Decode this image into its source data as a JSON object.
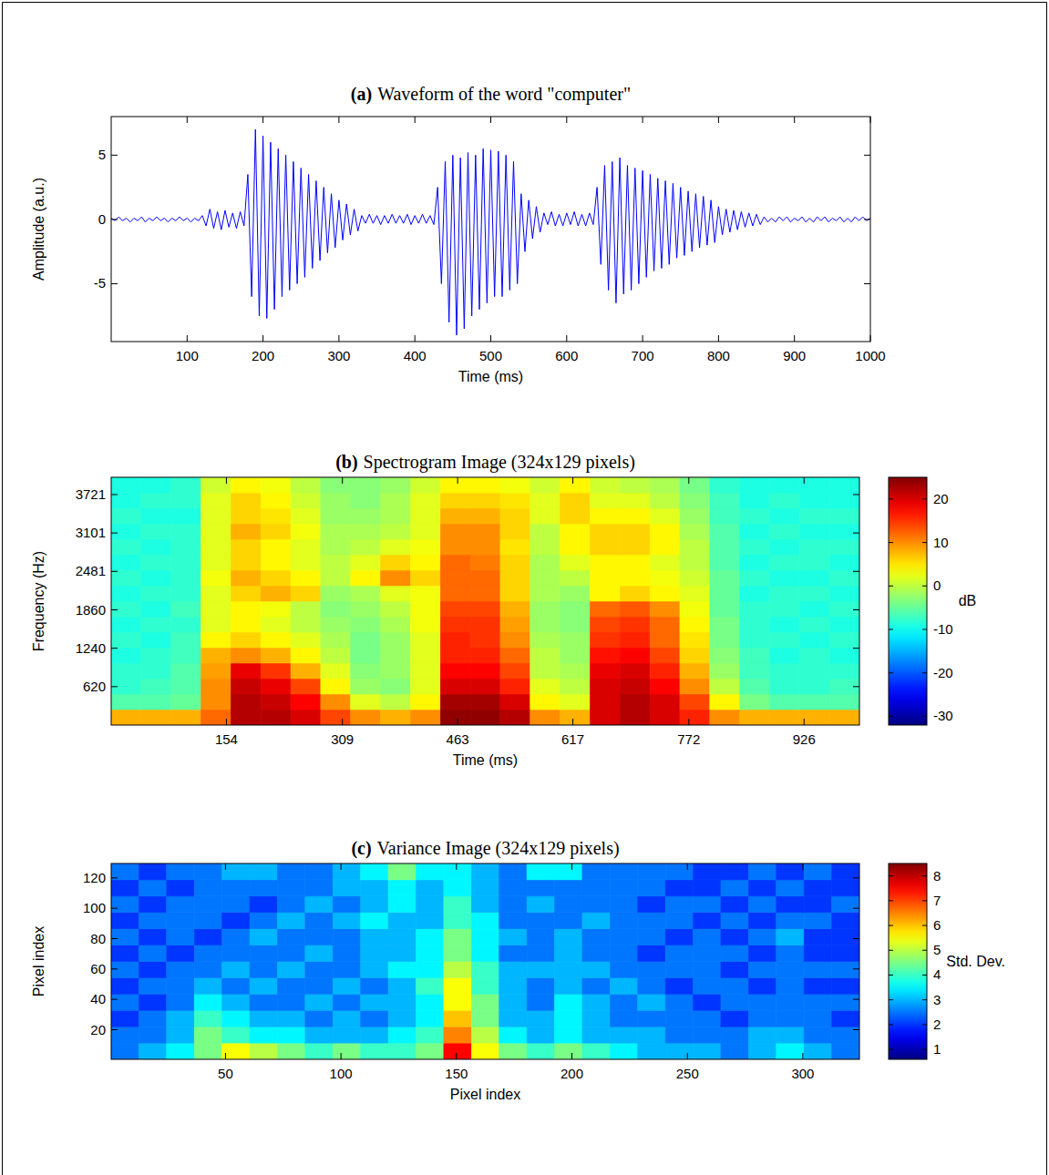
{
  "chart_data": [
    {
      "type": "line",
      "label": "(a)",
      "title": "Waveform of the word \"computer\"",
      "x_label": "Time (ms)",
      "y_label": "Amplitude (a.u.)",
      "x": [
        0,
        5,
        10,
        15,
        20,
        25,
        30,
        35,
        40,
        45,
        50,
        55,
        60,
        65,
        70,
        75,
        80,
        85,
        90,
        95,
        100,
        105,
        110,
        115,
        120,
        125,
        130,
        135,
        140,
        145,
        150,
        155,
        160,
        165,
        170,
        175,
        180,
        185,
        190,
        195,
        200,
        205,
        210,
        215,
        220,
        225,
        230,
        235,
        240,
        245,
        250,
        255,
        260,
        265,
        270,
        275,
        280,
        285,
        290,
        295,
        300,
        305,
        310,
        315,
        320,
        325,
        330,
        335,
        340,
        345,
        350,
        355,
        360,
        365,
        370,
        375,
        380,
        385,
        390,
        395,
        400,
        405,
        410,
        415,
        420,
        425,
        430,
        435,
        440,
        445,
        450,
        455,
        460,
        465,
        470,
        475,
        480,
        485,
        490,
        495,
        500,
        505,
        510,
        515,
        520,
        525,
        530,
        535,
        540,
        545,
        550,
        555,
        560,
        565,
        570,
        575,
        580,
        585,
        590,
        595,
        600,
        605,
        610,
        615,
        620,
        625,
        630,
        635,
        640,
        645,
        650,
        655,
        660,
        665,
        670,
        675,
        680,
        685,
        690,
        695,
        700,
        705,
        710,
        715,
        720,
        725,
        730,
        735,
        740,
        745,
        750,
        755,
        760,
        765,
        770,
        775,
        780,
        785,
        790,
        795,
        800,
        805,
        810,
        815,
        820,
        825,
        830,
        835,
        840,
        845,
        850,
        855,
        860,
        865,
        870,
        875,
        880,
        885,
        890,
        895,
        900,
        905,
        910,
        915,
        920,
        925,
        930,
        935,
        940,
        945,
        950,
        955,
        960,
        965,
        970,
        975,
        980,
        985,
        990,
        995,
        1000
      ],
      "values": [
        0.1,
        -0.1,
        0.2,
        -0.1,
        0.1,
        -0.2,
        0.1,
        -0.1,
        0.2,
        -0.2,
        0.1,
        -0.1,
        0.2,
        -0.1,
        0.1,
        -0.2,
        0.1,
        -0.1,
        0.2,
        -0.1,
        0.1,
        -0.2,
        0.1,
        -0.1,
        0.3,
        -0.5,
        0.8,
        -0.7,
        0.6,
        -0.8,
        0.7,
        -0.6,
        0.5,
        -0.7,
        0.6,
        -0.5,
        3.5,
        -6,
        7,
        -7.5,
        6.5,
        -7.7,
        6,
        -7,
        5.5,
        -6,
        5,
        -5.5,
        4.5,
        -5,
        4,
        -4.5,
        3.5,
        -3.8,
        3,
        -3.2,
        2.5,
        -2.6,
        2,
        -2.2,
        1.5,
        -1.6,
        1.2,
        -1.2,
        0.8,
        -0.9,
        0.3,
        -0.3,
        0.4,
        -0.3,
        0.3,
        -0.4,
        0.3,
        -0.3,
        0.4,
        -0.3,
        0.3,
        -0.3,
        0.4,
        -0.4,
        0.3,
        -0.3,
        0.4,
        -0.3,
        0.3,
        -0.4,
        2.5,
        -5,
        4.5,
        -8,
        5,
        -9,
        4.8,
        -8.5,
        5.2,
        -7.5,
        5,
        -7,
        5.5,
        -6.5,
        5.4,
        -6,
        5.3,
        -6,
        5,
        -5.5,
        4.5,
        -5,
        2,
        -2.5,
        1.5,
        -1.5,
        1,
        -1,
        0.5,
        -0.4,
        0.6,
        -0.5,
        0.4,
        -0.5,
        0.5,
        -0.4,
        0.6,
        -0.5,
        0.4,
        -0.5,
        0.5,
        -0.4,
        2.5,
        -3.5,
        4.2,
        -5.5,
        4.5,
        -6.5,
        4.8,
        -5.8,
        4.2,
        -5.5,
        4,
        -5,
        3.8,
        -4.5,
        3.5,
        -4,
        3.2,
        -3.8,
        3,
        -3.5,
        2.8,
        -3,
        2.5,
        -2.8,
        2.2,
        -2.5,
        2,
        -2.2,
        1.8,
        -2,
        1.5,
        -1.8,
        1,
        -1.2,
        0.8,
        -1,
        0.7,
        -0.8,
        0.6,
        -0.6,
        0.5,
        -0.5,
        0.4,
        -0.4,
        0.2,
        -0.2,
        0.1,
        -0.2,
        0.2,
        -0.1,
        0.2,
        -0.2,
        0.1,
        -0.1,
        0.2,
        -0.2,
        0.1,
        -0.2,
        0.2,
        -0.1,
        0.2,
        -0.2,
        0.1,
        -0.1,
        0.2,
        -0.2,
        0.1,
        -0.2,
        0.2,
        -0.1,
        0.2,
        -0.1,
        0.1
      ],
      "color": "#0000ff",
      "xlim": [
        0,
        1000
      ],
      "ylim": [
        -9.5,
        8
      ],
      "xticks": [
        100,
        200,
        300,
        400,
        500,
        600,
        700,
        800,
        900,
        1000
      ],
      "yticks": [
        -5,
        0,
        5
      ]
    },
    {
      "type": "heatmap",
      "label": "(b)",
      "title": "Spectrogram Image (324x129 pixels)",
      "x_label": "Time (ms)",
      "y_label": "Frequency (Hz)",
      "x_edges": [
        0,
        40,
        80,
        120,
        160,
        200,
        240,
        280,
        320,
        360,
        400,
        440,
        480,
        520,
        560,
        600,
        640,
        680,
        720,
        760,
        800,
        840,
        880,
        920,
        960,
        1000
      ],
      "y_edges": [
        0,
        250,
        500,
        750,
        1000,
        1250,
        1500,
        1750,
        2000,
        2250,
        2500,
        2750,
        3000,
        3250,
        3500,
        3750,
        4000
      ],
      "cells": [
        [
          8,
          8,
          8,
          12,
          22,
          22,
          20,
          14,
          10,
          8,
          10,
          24,
          24,
          22,
          10,
          8,
          20,
          22,
          20,
          16,
          10,
          8,
          8,
          8,
          8
        ],
        [
          -6,
          -6,
          -5,
          10,
          22,
          21,
          18,
          10,
          2,
          0,
          4,
          23,
          23,
          20,
          4,
          2,
          20,
          22,
          20,
          14,
          4,
          -4,
          -6,
          -6,
          -6
        ],
        [
          -8,
          -7,
          -6,
          10,
          21,
          19,
          14,
          4,
          -2,
          -3,
          2,
          20,
          20,
          16,
          2,
          0,
          20,
          21,
          18,
          10,
          0,
          -6,
          -8,
          -8,
          -7
        ],
        [
          -8,
          -8,
          -6,
          9,
          19,
          15,
          8,
          2,
          -3,
          -2,
          2,
          18,
          18,
          14,
          0,
          -1,
          19,
          20,
          16,
          8,
          -2,
          -7,
          -8,
          -8,
          -8
        ],
        [
          -9,
          -8,
          -7,
          8,
          10,
          8,
          4,
          0,
          -4,
          -2,
          2,
          16,
          16,
          12,
          0,
          -2,
          17,
          18,
          14,
          6,
          -3,
          -7,
          -9,
          -8,
          -9
        ],
        [
          -8,
          -9,
          -7,
          4,
          6,
          4,
          2,
          -1,
          -4,
          -2,
          2,
          16,
          15,
          10,
          -1,
          -2,
          15,
          16,
          12,
          5,
          -4,
          -8,
          -8,
          -9,
          -8
        ],
        [
          -9,
          -8,
          -8,
          2,
          4,
          2,
          0,
          -2,
          -3,
          -1,
          3,
          15,
          15,
          9,
          -2,
          -3,
          14,
          15,
          12,
          4,
          -4,
          -8,
          -9,
          -8,
          -9
        ],
        [
          -8,
          -9,
          -7,
          2,
          4,
          3,
          0,
          -3,
          -2,
          0,
          3,
          14,
          14,
          8,
          -2,
          -3,
          12,
          13,
          10,
          3,
          -5,
          -8,
          -8,
          -9,
          -8
        ],
        [
          -9,
          -8,
          -8,
          2,
          6,
          8,
          6,
          -2,
          -1,
          2,
          3,
          12,
          12,
          6,
          -1,
          -2,
          4,
          6,
          4,
          2,
          -5,
          -9,
          -8,
          -8,
          -9
        ],
        [
          -8,
          -9,
          -8,
          3,
          8,
          6,
          4,
          0,
          4,
          10,
          6,
          12,
          12,
          6,
          -1,
          0,
          4,
          4,
          3,
          1,
          -5,
          -8,
          -9,
          -9,
          -8
        ],
        [
          -9,
          -8,
          -8,
          2,
          6,
          4,
          2,
          0,
          2,
          6,
          4,
          12,
          11,
          6,
          -1,
          2,
          4,
          4,
          2,
          0,
          -6,
          -9,
          -8,
          -8,
          -9
        ],
        [
          -8,
          -9,
          -8,
          2,
          6,
          4,
          2,
          -1,
          0,
          2,
          3,
          10,
          10,
          5,
          0,
          4,
          6,
          6,
          4,
          0,
          -6,
          -8,
          -9,
          -8,
          -8
        ],
        [
          -9,
          -8,
          -8,
          2,
          8,
          6,
          3,
          -1,
          -1,
          0,
          2,
          10,
          10,
          6,
          0,
          4,
          6,
          6,
          4,
          -1,
          -6,
          -9,
          -8,
          -9,
          -9
        ],
        [
          -8,
          -9,
          -9,
          2,
          6,
          5,
          2,
          -2,
          -2,
          -1,
          2,
          8,
          8,
          6,
          2,
          6,
          4,
          4,
          2,
          -2,
          -7,
          -8,
          -9,
          -8,
          -8
        ],
        [
          -9,
          -8,
          -8,
          2,
          6,
          4,
          1,
          -2,
          -3,
          -1,
          2,
          6,
          6,
          5,
          2,
          6,
          2,
          2,
          0,
          -3,
          -7,
          -9,
          -8,
          -9,
          -9
        ],
        [
          -9,
          -9,
          -8,
          1,
          4,
          3,
          0,
          -3,
          -3,
          -2,
          1,
          4,
          4,
          3,
          1,
          4,
          1,
          0,
          -1,
          -4,
          -8,
          -9,
          -9,
          -9,
          -9
        ]
      ],
      "xlim": [
        0,
        1000
      ],
      "ylim": [
        0,
        4000
      ],
      "xticks": [
        154,
        309,
        463,
        617,
        772,
        926
      ],
      "yticks": [
        620,
        1240,
        1860,
        2481,
        3101,
        3721
      ],
      "colorbar_range": [
        -32,
        25
      ],
      "colorbar_ticks": [
        -30,
        -20,
        -10,
        0,
        10,
        20
      ],
      "colorbar_label": "dB"
    },
    {
      "type": "heatmap",
      "label": "(c)",
      "title": "Variance Image (324x129 pixels)",
      "x_label": "Pixel index",
      "y_label": "Pixel index",
      "x_edges": [
        0.5,
        12.5,
        24.5,
        36.5,
        48.5,
        60.5,
        72.5,
        84.5,
        96.5,
        108.5,
        120.5,
        132.5,
        144.5,
        156.5,
        168.5,
        180.5,
        192.5,
        204.5,
        216.5,
        228.5,
        240.5,
        252.5,
        264.5,
        276.5,
        288.5,
        300.5,
        312.5,
        324.5
      ],
      "y_edges": [
        0.5,
        11.25,
        22,
        32.75,
        43.5,
        54.25,
        65,
        75.75,
        86.5,
        97.25,
        108,
        118.75,
        129.5
      ],
      "cells": [
        [
          2.5,
          3,
          3.5,
          4.5,
          5.5,
          5,
          4.5,
          4,
          4.5,
          4,
          4,
          4.5,
          7.5,
          5.5,
          4.5,
          4,
          4.5,
          4,
          3.5,
          3,
          3,
          3,
          2.5,
          3,
          3.5,
          3,
          2.5
        ],
        [
          2.5,
          2.5,
          3,
          4.5,
          4,
          3.5,
          3.5,
          3,
          3,
          3,
          3.5,
          4,
          6.5,
          5,
          3.5,
          3,
          3.5,
          3,
          3,
          3,
          2.5,
          2.5,
          2.5,
          3,
          3,
          2.5,
          2.5
        ],
        [
          2,
          2.5,
          3,
          4,
          3.5,
          3,
          3,
          2.5,
          3,
          2.5,
          3,
          3.5,
          6,
          4.5,
          3,
          3,
          3.5,
          3,
          2.5,
          2.5,
          2.5,
          2.5,
          2,
          2.5,
          2.5,
          2.5,
          2
        ],
        [
          2.5,
          2,
          2.5,
          3.5,
          3,
          2.5,
          2.5,
          3,
          2.5,
          3,
          3,
          3.5,
          5.5,
          4.5,
          3,
          2.5,
          3.5,
          3,
          2.5,
          3,
          2.5,
          2,
          2.5,
          2.5,
          2.5,
          2.5,
          2.5
        ],
        [
          2,
          2.5,
          2.5,
          3,
          2.5,
          3,
          2.5,
          2.5,
          3,
          2.5,
          3,
          4,
          5.5,
          4,
          3,
          2.5,
          3,
          2.5,
          3,
          2.5,
          2,
          2.5,
          2.5,
          2,
          2.5,
          2,
          2
        ],
        [
          2.5,
          2,
          2.5,
          2.5,
          3,
          2.5,
          3,
          2.5,
          2.5,
          3,
          3.5,
          3.5,
          5,
          4,
          3,
          3,
          3,
          3,
          2.5,
          2.5,
          2.5,
          2.5,
          2,
          2.5,
          2.5,
          2.5,
          2.5
        ],
        [
          2,
          2.5,
          2,
          2.5,
          2.5,
          2.5,
          2.5,
          3,
          2.5,
          3,
          3,
          3.5,
          4.5,
          3.5,
          2.5,
          2.5,
          3,
          2.5,
          2.5,
          2,
          2.5,
          2.5,
          2.5,
          2,
          2.5,
          2,
          2
        ],
        [
          2.5,
          2,
          2.5,
          2,
          2.5,
          3,
          2.5,
          2.5,
          2.5,
          3,
          3,
          3.5,
          4.5,
          3.5,
          3,
          2.5,
          3,
          2.5,
          2.5,
          2.5,
          2,
          2.5,
          2,
          2.5,
          3,
          2,
          2
        ],
        [
          2,
          2.5,
          2.5,
          2.5,
          2,
          2.5,
          3,
          2.5,
          3,
          3.5,
          3,
          3,
          4,
          3.5,
          2.5,
          2.5,
          2.5,
          3,
          2.5,
          2.5,
          2.5,
          2,
          2.5,
          2,
          2.5,
          2.5,
          2
        ],
        [
          2.5,
          2,
          2.5,
          2.5,
          2.5,
          2,
          2.5,
          3,
          2.5,
          3,
          3.5,
          3,
          4,
          3,
          2.5,
          3,
          2.5,
          2.5,
          2.5,
          2,
          2.5,
          2.5,
          2,
          2.5,
          2,
          2,
          2.5
        ],
        [
          2,
          2.5,
          2,
          2.5,
          2.5,
          2.5,
          2.5,
          2.5,
          3,
          3,
          3.5,
          3,
          3.5,
          3,
          2.5,
          2.5,
          2.5,
          2.5,
          2.5,
          2.5,
          2,
          2,
          2.5,
          2,
          2.5,
          2,
          2
        ],
        [
          2.5,
          2,
          2.5,
          2.5,
          3,
          3,
          2.5,
          2.5,
          3,
          3.5,
          4.5,
          3.5,
          3.5,
          3,
          2.5,
          3.5,
          3.5,
          2.5,
          2.5,
          2.5,
          2.5,
          2,
          2,
          2.5,
          2,
          2.5,
          2
        ]
      ],
      "xlim": [
        0.5,
        324.5
      ],
      "ylim": [
        0.5,
        129.5
      ],
      "xticks": [
        50,
        100,
        150,
        200,
        250,
        300
      ],
      "yticks": [
        20,
        40,
        60,
        80,
        100,
        120
      ],
      "colorbar_range": [
        0.6,
        8.5
      ],
      "colorbar_ticks": [
        1,
        2,
        3,
        4,
        5,
        6,
        7,
        8
      ],
      "colorbar_label": "Std. Dev."
    }
  ]
}
